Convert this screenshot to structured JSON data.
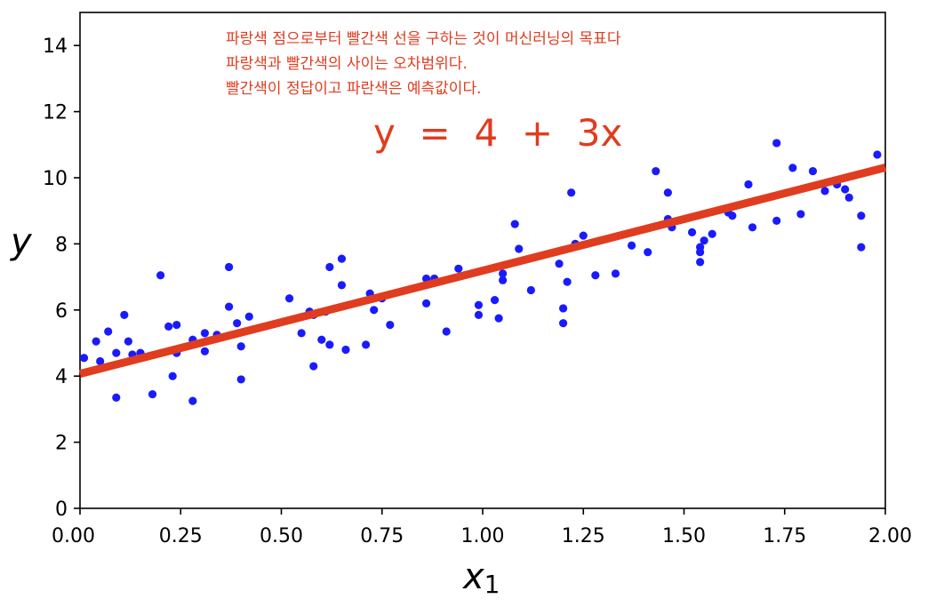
{
  "chart_data": {
    "type": "scatter",
    "xlabel": "x",
    "xlabel_sub": "1",
    "ylabel": "y",
    "xlim": [
      0,
      2
    ],
    "ylim": [
      0,
      15
    ],
    "x_ticks": [
      0,
      0.25,
      0.5,
      0.75,
      1.0,
      1.25,
      1.5,
      1.75,
      2.0
    ],
    "x_tick_labels": [
      "0.00",
      "0.25",
      "0.50",
      "0.75",
      "1.00",
      "1.25",
      "1.50",
      "1.75",
      "2.00"
    ],
    "y_ticks": [
      0,
      2,
      4,
      6,
      8,
      10,
      12,
      14
    ],
    "y_tick_labels": [
      "0",
      "2",
      "4",
      "6",
      "8",
      "10",
      "12",
      "14"
    ],
    "grid": false,
    "annotations": [
      "파랑색 점으로부터 빨간색 선을 구하는 것이 머신러닝의 목표다",
      "파랑색과 빨간색의 사이는 오차범위다.",
      "빨간색이 정답이고 파란색은 예측값이다."
    ],
    "equation": "y  =  4  +  3x",
    "line": {
      "intercept": 4.07,
      "slope": 3.12,
      "x_range": [
        0,
        2
      ]
    },
    "colors": {
      "points": "#1a1aff",
      "line": "#e03c1f",
      "annotation": "#e03c1f"
    },
    "points": [
      [
        0.01,
        4.55
      ],
      [
        0.04,
        5.05
      ],
      [
        0.05,
        4.45
      ],
      [
        0.07,
        5.35
      ],
      [
        0.09,
        4.7
      ],
      [
        0.09,
        3.35
      ],
      [
        0.11,
        5.85
      ],
      [
        0.12,
        5.05
      ],
      [
        0.13,
        4.65
      ],
      [
        0.15,
        4.7
      ],
      [
        0.18,
        3.45
      ],
      [
        0.2,
        7.05
      ],
      [
        0.22,
        5.5
      ],
      [
        0.23,
        4.0
      ],
      [
        0.24,
        5.55
      ],
      [
        0.24,
        4.7
      ],
      [
        0.28,
        5.1
      ],
      [
        0.28,
        3.25
      ],
      [
        0.31,
        5.3
      ],
      [
        0.31,
        4.75
      ],
      [
        0.34,
        5.25
      ],
      [
        0.37,
        6.1
      ],
      [
        0.37,
        7.3
      ],
      [
        0.39,
        5.6
      ],
      [
        0.4,
        4.9
      ],
      [
        0.4,
        3.9
      ],
      [
        0.42,
        5.8
      ],
      [
        0.52,
        6.35
      ],
      [
        0.55,
        5.3
      ],
      [
        0.57,
        5.95
      ],
      [
        0.58,
        5.85
      ],
      [
        0.58,
        4.3
      ],
      [
        0.6,
        5.1
      ],
      [
        0.61,
        5.95
      ],
      [
        0.62,
        7.3
      ],
      [
        0.62,
        4.95
      ],
      [
        0.65,
        7.55
      ],
      [
        0.65,
        6.75
      ],
      [
        0.66,
        4.8
      ],
      [
        0.71,
        4.95
      ],
      [
        0.72,
        6.5
      ],
      [
        0.73,
        6.0
      ],
      [
        0.75,
        6.35
      ],
      [
        0.77,
        5.55
      ],
      [
        0.86,
        6.95
      ],
      [
        0.86,
        6.2
      ],
      [
        0.88,
        6.95
      ],
      [
        0.91,
        5.35
      ],
      [
        0.94,
        7.25
      ],
      [
        0.99,
        6.15
      ],
      [
        0.99,
        5.85
      ],
      [
        1.03,
        6.3
      ],
      [
        1.04,
        5.75
      ],
      [
        1.05,
        6.9
      ],
      [
        1.05,
        7.1
      ],
      [
        1.08,
        8.6
      ],
      [
        1.09,
        7.85
      ],
      [
        1.12,
        6.6
      ],
      [
        1.19,
        7.4
      ],
      [
        1.2,
        6.05
      ],
      [
        1.2,
        5.6
      ],
      [
        1.21,
        6.85
      ],
      [
        1.22,
        9.55
      ],
      [
        1.23,
        8.0
      ],
      [
        1.25,
        8.25
      ],
      [
        1.28,
        7.05
      ],
      [
        1.33,
        7.1
      ],
      [
        1.37,
        7.95
      ],
      [
        1.41,
        7.75
      ],
      [
        1.43,
        10.2
      ],
      [
        1.46,
        9.55
      ],
      [
        1.46,
        8.75
      ],
      [
        1.47,
        8.5
      ],
      [
        1.52,
        8.35
      ],
      [
        1.54,
        7.9
      ],
      [
        1.54,
        7.75
      ],
      [
        1.54,
        7.45
      ],
      [
        1.55,
        8.1
      ],
      [
        1.57,
        8.3
      ],
      [
        1.61,
        8.95
      ],
      [
        1.62,
        8.85
      ],
      [
        1.66,
        9.8
      ],
      [
        1.67,
        8.5
      ],
      [
        1.73,
        11.05
      ],
      [
        1.73,
        8.7
      ],
      [
        1.77,
        10.3
      ],
      [
        1.79,
        8.9
      ],
      [
        1.82,
        10.2
      ],
      [
        1.85,
        9.6
      ],
      [
        1.88,
        9.8
      ],
      [
        1.9,
        9.65
      ],
      [
        1.91,
        9.4
      ],
      [
        1.94,
        7.9
      ],
      [
        1.94,
        8.85
      ],
      [
        1.98,
        10.7
      ]
    ]
  }
}
